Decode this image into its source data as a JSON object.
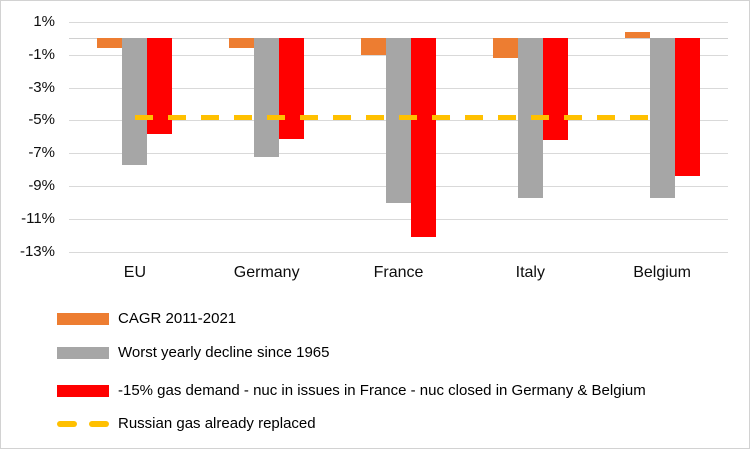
{
  "chart_data": {
    "type": "bar",
    "title": "",
    "xlabel": "",
    "ylabel": "",
    "grid": true,
    "legend_position": "bottom-left",
    "categories": [
      "EU",
      "Germany",
      "France",
      "Italy",
      "Belgium"
    ],
    "series": [
      {
        "key": "cagr",
        "name": "CAGR 2011-2021",
        "color": "#ED7D31",
        "values": [
          -0.6,
          -0.6,
          -1.0,
          -1.2,
          0.4
        ]
      },
      {
        "key": "worst-decline",
        "name": "Worst yearly decline since 1965",
        "color": "#A6A6A6",
        "values": [
          -7.7,
          -7.2,
          -10.0,
          -9.7,
          -9.7
        ]
      },
      {
        "key": "gas-demand-scenario",
        "name": "-15% gas demand - nuc in issues in France - nuc closed in Germany & Belgium",
        "color": "#FF0000",
        "values": [
          -5.8,
          -6.1,
          -12.1,
          -6.2,
          -8.4
        ]
      }
    ],
    "reference_line": {
      "key": "russian-gas",
      "name": "Russian gas already replaced",
      "color": "#FFC000",
      "value": -4.8,
      "style": "dashed"
    },
    "y_axis": {
      "ticks": [
        1,
        -1,
        -3,
        -5,
        -7,
        -9,
        -11,
        -13
      ],
      "tick_labels": [
        "1%",
        "-1%",
        "-3%",
        "-5%",
        "-7%",
        "-9%",
        "-11%",
        "-13%"
      ],
      "ylim": [
        -13,
        1
      ]
    }
  },
  "colors": {
    "gridline": "#D9D9D9",
    "axis_text": "#0D0D0D",
    "background": "#FFFFFF",
    "frame_border": "#D2D2D2"
  }
}
